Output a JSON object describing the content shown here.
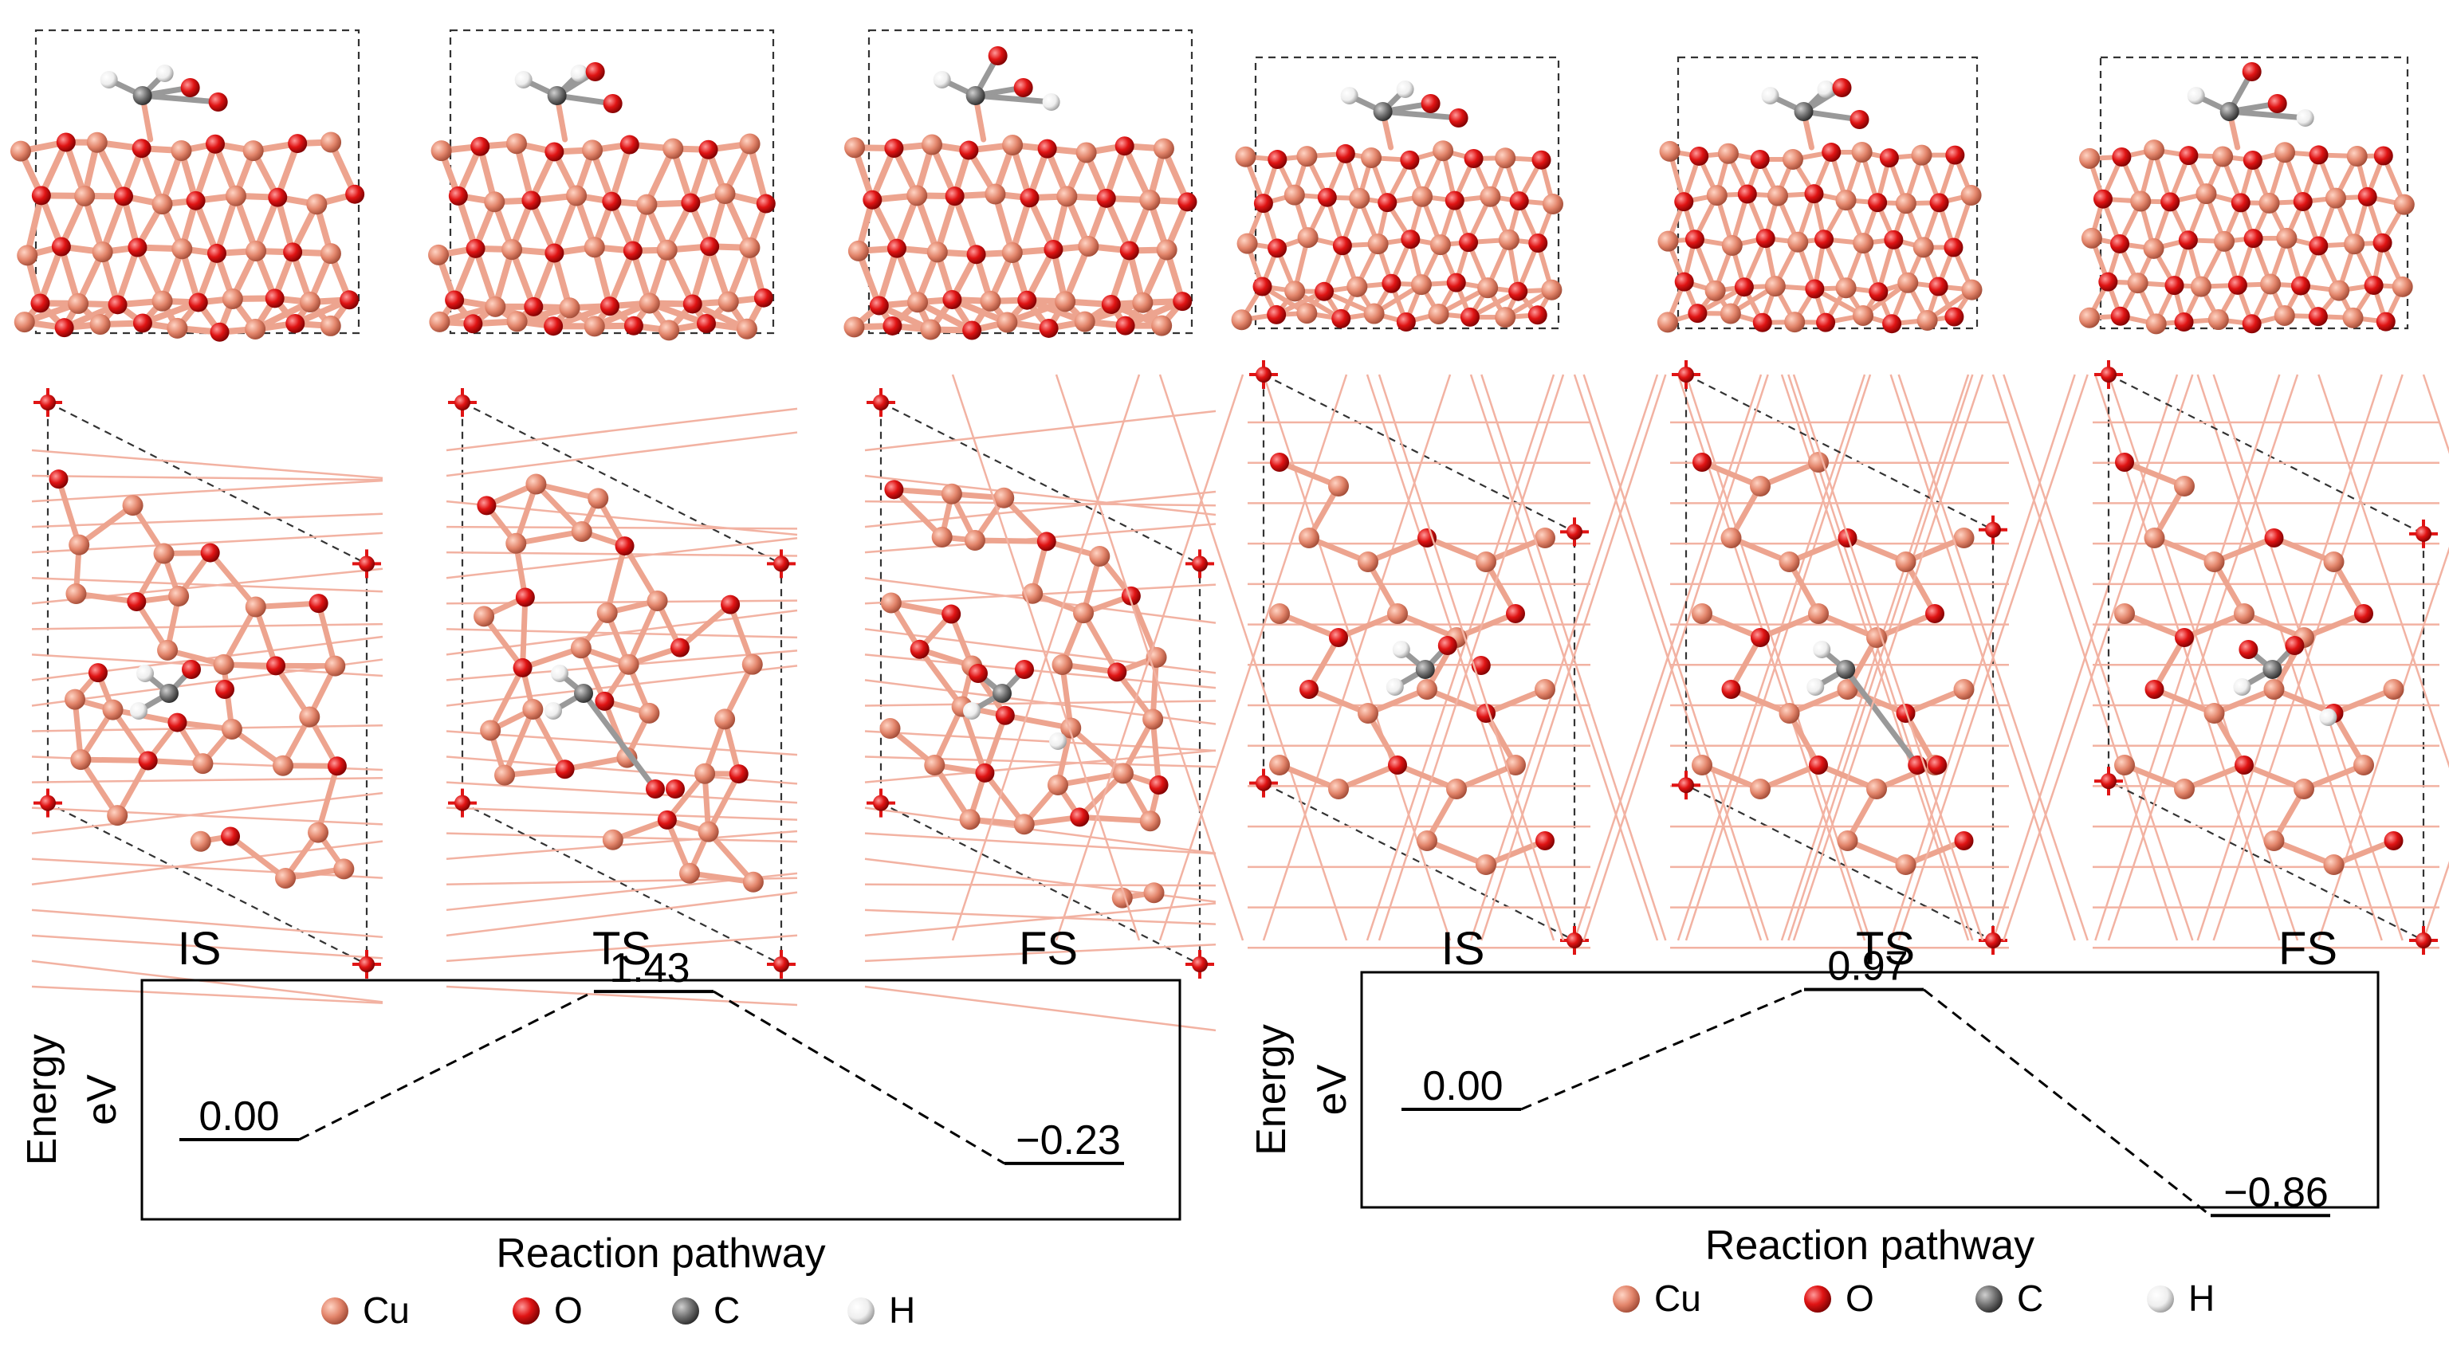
{
  "panels": [
    {
      "states": [
        "IS",
        "TS",
        "FS"
      ],
      "energies": [
        "0.00",
        "1.43",
        "−0.23"
      ],
      "energy_values": [
        0.0,
        1.43,
        -0.23
      ],
      "y_label_line1": "Energy",
      "y_label_line2": "eV",
      "x_label": "Reaction pathway",
      "legend": [
        "Cu",
        "O",
        "C",
        "H"
      ]
    },
    {
      "states": [
        "IS",
        "TS",
        "FS"
      ],
      "energies": [
        "0.00",
        "0.97",
        "−0.86"
      ],
      "energy_values": [
        0.0,
        0.97,
        -0.86
      ],
      "y_label_line1": "Energy",
      "y_label_line2": "eV",
      "x_label": "Reaction pathway",
      "legend": [
        "Cu",
        "O",
        "C",
        "H"
      ]
    }
  ],
  "colors": {
    "cu": "#e3856b",
    "cu_bond": "#eda48f",
    "o": "#e01414",
    "c": "#707070",
    "h": "#f0f0f0",
    "frame": "#000000"
  },
  "structure_types": [
    "slab-side-view",
    "slab-top-view"
  ]
}
